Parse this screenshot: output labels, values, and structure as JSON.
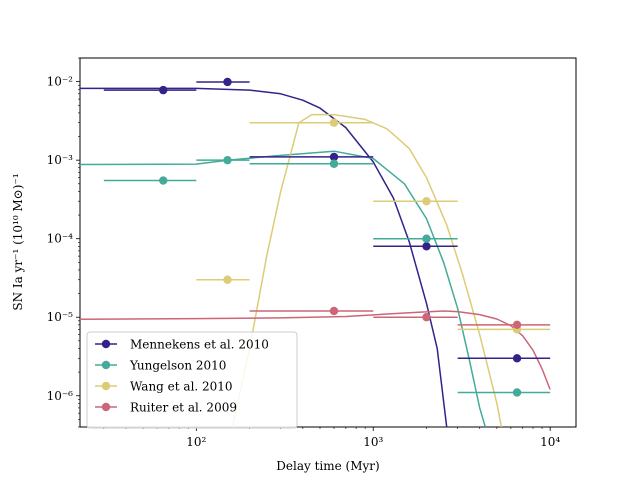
{
  "chart_data": {
    "type": "scatter",
    "xlabel": "Delay time (Myr)",
    "ylabel": "SN Ia yr⁻¹ (10¹⁰ M⊙)⁻¹",
    "xscale": "log",
    "yscale": "log",
    "xlim": [
      22,
      14000
    ],
    "ylim": [
      4e-07,
      0.02
    ],
    "x_ticks": [
      {
        "value": 100,
        "label": "10²"
      },
      {
        "value": 1000,
        "label": "10³"
      },
      {
        "value": 10000,
        "label": "10⁴"
      }
    ],
    "y_ticks": [
      {
        "value": 1e-06,
        "label": "10⁻⁶"
      },
      {
        "value": 1e-05,
        "label": "10⁻⁵"
      },
      {
        "value": 0.0001,
        "label": "10⁻⁴"
      },
      {
        "value": 0.001,
        "label": "10⁻³"
      },
      {
        "value": 0.01,
        "label": "10⁻²"
      }
    ],
    "legend_position": "lower-left",
    "series": [
      {
        "name": "Mennekens et al. 2010",
        "color": "#332288",
        "points": [
          {
            "x": 65,
            "y": 0.0078,
            "xmin": 30,
            "xmax": 100
          },
          {
            "x": 150,
            "y": 0.0099,
            "xmin": 100,
            "xmax": 200
          },
          {
            "x": 600,
            "y": 0.0011,
            "xmin": 200,
            "xmax": 1000
          },
          {
            "x": 2000,
            "y": 8e-05,
            "xmin": 1000,
            "xmax": 3000
          },
          {
            "x": 6500,
            "y": 3e-06,
            "xmin": 3000,
            "xmax": 10000
          }
        ],
        "curve": [
          [
            22,
            0.0082
          ],
          [
            100,
            0.0082
          ],
          [
            200,
            0.0078
          ],
          [
            300,
            0.007
          ],
          [
            400,
            0.0058
          ],
          [
            500,
            0.0046
          ],
          [
            700,
            0.0026
          ],
          [
            1000,
            0.00095
          ],
          [
            1300,
            0.00033
          ],
          [
            1600,
            9e-05
          ],
          [
            2000,
            1.5e-05
          ],
          [
            2300,
            4e-06
          ],
          [
            2600,
            4e-07
          ]
        ]
      },
      {
        "name": "Yungelson 2010",
        "color": "#44AA99",
        "points": [
          {
            "x": 65,
            "y": 0.00055,
            "xmin": 30,
            "xmax": 100
          },
          {
            "x": 150,
            "y": 0.001,
            "xmin": 100,
            "xmax": 200
          },
          {
            "x": 600,
            "y": 0.0009,
            "xmin": 200,
            "xmax": 1000
          },
          {
            "x": 2000,
            "y": 0.0001,
            "xmin": 1000,
            "xmax": 3000
          },
          {
            "x": 6500,
            "y": 1.1e-06,
            "xmin": 3000,
            "xmax": 10000
          }
        ],
        "curve": [
          [
            22,
            0.00088
          ],
          [
            100,
            0.00089
          ],
          [
            150,
            0.001
          ],
          [
            300,
            0.00115
          ],
          [
            600,
            0.0013
          ],
          [
            1000,
            0.00105
          ],
          [
            1500,
            0.0005
          ],
          [
            2000,
            0.00018
          ],
          [
            2500,
            5e-05
          ],
          [
            3000,
            1.3e-05
          ],
          [
            3500,
            2.8e-06
          ],
          [
            4000,
            7e-07
          ],
          [
            4300,
            4e-07
          ]
        ]
      },
      {
        "name": "Wang et al. 2010",
        "color": "#DDCC77",
        "points": [
          {
            "x": 150,
            "y": 3e-05,
            "xmin": 100,
            "xmax": 200
          },
          {
            "x": 600,
            "y": 0.003,
            "xmin": 200,
            "xmax": 1000
          },
          {
            "x": 2000,
            "y": 0.0003,
            "xmin": 1000,
            "xmax": 3000
          },
          {
            "x": 6500,
            "y": 7e-06,
            "xmin": 3000,
            "xmax": 10000
          }
        ],
        "curve": [
          [
            160,
            4e-07
          ],
          [
            200,
            4e-06
          ],
          [
            250,
            6e-05
          ],
          [
            300,
            0.0004
          ],
          [
            380,
            0.003
          ],
          [
            450,
            0.0038
          ],
          [
            600,
            0.0038
          ],
          [
            900,
            0.0033
          ],
          [
            1200,
            0.0025
          ],
          [
            1600,
            0.0014
          ],
          [
            2000,
            0.0006
          ],
          [
            2600,
            0.00015
          ],
          [
            3200,
            3.5e-05
          ],
          [
            4000,
            6e-06
          ],
          [
            5000,
            8e-07
          ],
          [
            5300,
            4e-07
          ]
        ]
      },
      {
        "name": "Ruiter et al. 2009",
        "color": "#CC6677",
        "points": [
          {
            "x": 600,
            "y": 1.2e-05,
            "xmin": 200,
            "xmax": 1000
          },
          {
            "x": 2000,
            "y": 1e-05,
            "xmin": 1000,
            "xmax": 3000
          },
          {
            "x": 6500,
            "y": 8e-06,
            "xmin": 3000,
            "xmax": 10000
          }
        ],
        "curve": [
          [
            22,
            9.4e-06
          ],
          [
            100,
            9.6e-06
          ],
          [
            300,
            9.8e-06
          ],
          [
            700,
            1.02e-05
          ],
          [
            1200,
            1.1e-05
          ],
          [
            1800,
            1.16e-05
          ],
          [
            2500,
            1.2e-05
          ],
          [
            3000,
            1.18e-05
          ],
          [
            4000,
            1.08e-05
          ],
          [
            5000,
            9.5e-06
          ],
          [
            6000,
            7.8e-06
          ],
          [
            7000,
            5.8e-06
          ],
          [
            8000,
            3.8e-06
          ],
          [
            9000,
            2.2e-06
          ],
          [
            10000,
            1.2e-06
          ]
        ]
      }
    ]
  }
}
